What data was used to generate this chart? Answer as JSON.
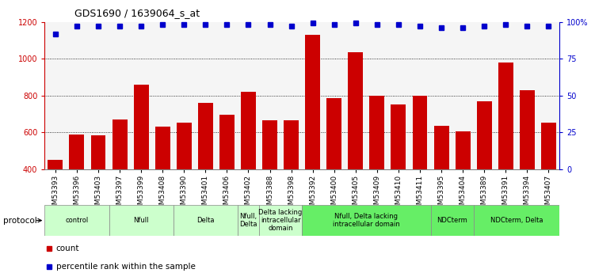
{
  "title": "GDS1690 / 1639064_s_at",
  "samples": [
    "GSM53393",
    "GSM53396",
    "GSM53403",
    "GSM53397",
    "GSM53399",
    "GSM53408",
    "GSM53390",
    "GSM53401",
    "GSM53406",
    "GSM53402",
    "GSM53388",
    "GSM53398",
    "GSM53392",
    "GSM53400",
    "GSM53405",
    "GSM53409",
    "GSM53410",
    "GSM53411",
    "GSM53395",
    "GSM53404",
    "GSM53389",
    "GSM53391",
    "GSM53394",
    "GSM53407"
  ],
  "counts": [
    450,
    590,
    585,
    670,
    860,
    630,
    655,
    760,
    695,
    820,
    665,
    665,
    1130,
    785,
    1035,
    800,
    750,
    800,
    635,
    605,
    770,
    980,
    830,
    655
  ],
  "percentile": [
    92,
    97,
    97,
    97,
    97,
    98,
    98,
    98,
    98,
    98,
    98,
    97,
    99,
    98,
    99,
    98,
    98,
    97,
    96,
    96,
    97,
    98,
    97,
    97
  ],
  "ylim_left": [
    400,
    1200
  ],
  "ylim_right": [
    0,
    100
  ],
  "yticks_left": [
    400,
    600,
    800,
    1000,
    1200
  ],
  "yticks_right": [
    0,
    25,
    50,
    75,
    100
  ],
  "bar_color": "#cc0000",
  "dot_color": "#0000cc",
  "bg_color": "#f5f5f5",
  "protocol_groups": [
    {
      "label": "control",
      "start": 0,
      "end": 3,
      "color": "#ccffcc"
    },
    {
      "label": "Nfull",
      "start": 3,
      "end": 6,
      "color": "#ccffcc"
    },
    {
      "label": "Delta",
      "start": 6,
      "end": 9,
      "color": "#ccffcc"
    },
    {
      "label": "Nfull,\nDelta",
      "start": 9,
      "end": 10,
      "color": "#ccffcc"
    },
    {
      "label": "Delta lacking\nintracellular\ndomain",
      "start": 10,
      "end": 12,
      "color": "#ccffcc"
    },
    {
      "label": "Nfull, Delta lacking\nintracellular domain",
      "start": 12,
      "end": 18,
      "color": "#66ee66"
    },
    {
      "label": "NDCterm",
      "start": 18,
      "end": 20,
      "color": "#66ee66"
    },
    {
      "label": "NDCterm, Delta",
      "start": 20,
      "end": 24,
      "color": "#66ee66"
    }
  ],
  "legend_count_label": "count",
  "legend_pct_label": "percentile rank within the sample",
  "protocol_label": "protocol"
}
